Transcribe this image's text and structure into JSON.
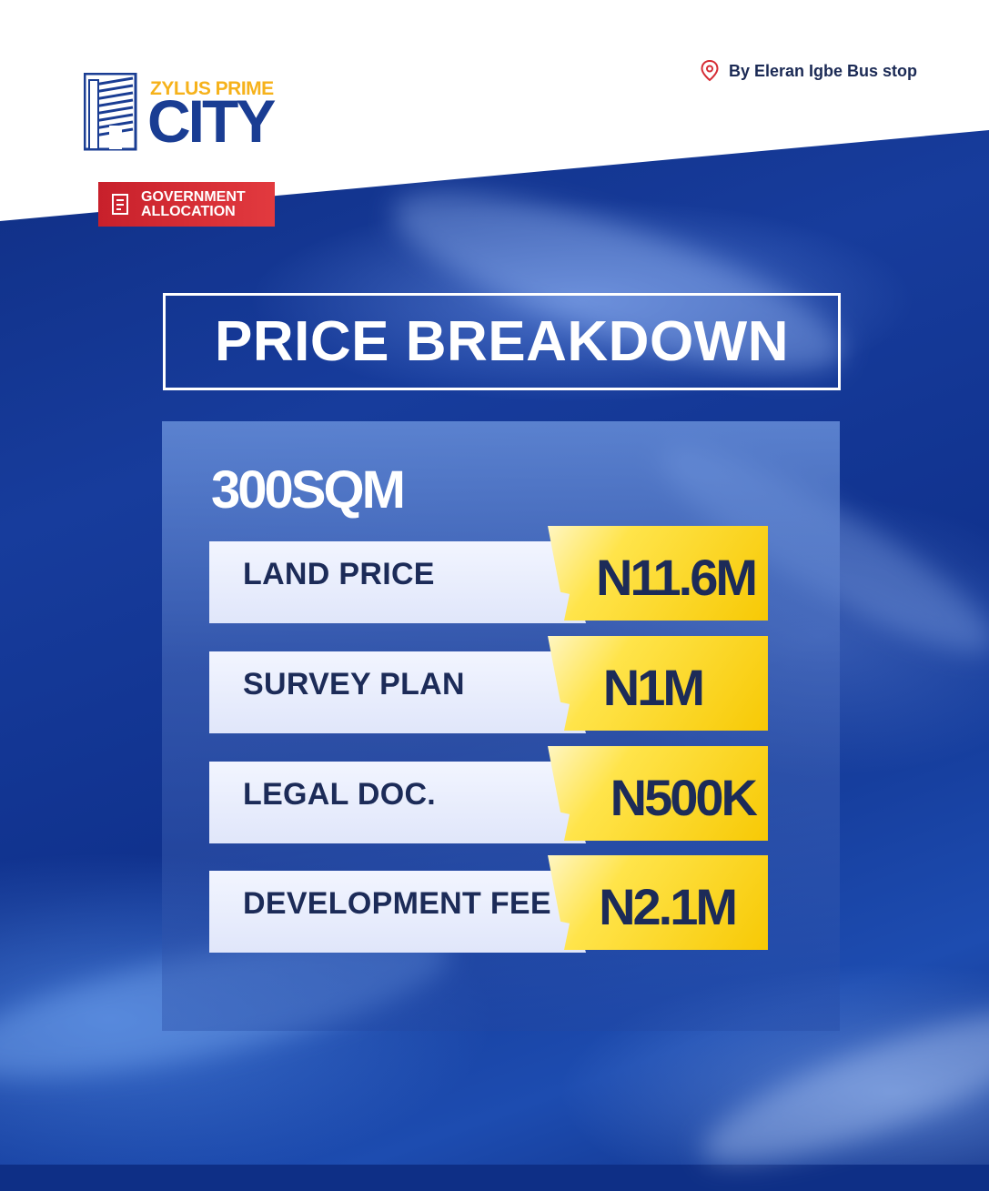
{
  "brand": {
    "name_top": "ZYLUS PRIME",
    "name_main": "CITY",
    "logo_icon": "building-stripes-icon",
    "colors": {
      "navy": "#1a3d93",
      "gold": "#f6b21b"
    }
  },
  "badge": {
    "text": "GOVERNMENT ALLOCATION",
    "icon": "document-icon",
    "color": "#d62d35"
  },
  "location": {
    "text": "By Eleran Igbe Bus stop",
    "icon": "map-pin-icon"
  },
  "heading": "PRICE BREAKDOWN",
  "plot_size": "300SQM",
  "price_rows": [
    {
      "label": "LAND PRICE",
      "price": "N11.6M"
    },
    {
      "label": "SURVEY PLAN",
      "price": "N1M"
    },
    {
      "label": "LEGAL DOC.",
      "price": "N500K"
    },
    {
      "label": "DEVELOPMENT FEE",
      "price": "N2.1M"
    }
  ],
  "accent_colors": {
    "price_yellow": "#f7c905",
    "label_text": "#1c2b58"
  }
}
